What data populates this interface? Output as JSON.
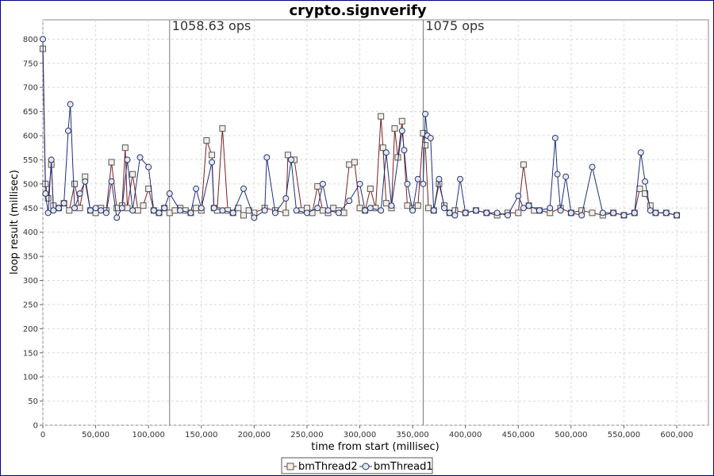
{
  "chart_data": {
    "type": "line",
    "title": "crypto.signverify",
    "xlabel": "time from start (millisec)",
    "ylabel": "loop result (millisec)",
    "xlim": [
      0,
      630000
    ],
    "ylim": [
      0,
      840
    ],
    "xticks": [
      0,
      50000,
      100000,
      150000,
      200000,
      250000,
      300000,
      350000,
      400000,
      450000,
      500000,
      550000,
      600000
    ],
    "xtick_labels": [
      "0",
      "50,000",
      "100,000",
      "150,000",
      "200,000",
      "250,000",
      "300,000",
      "350,000",
      "400,000",
      "450,000",
      "500,000",
      "550,000",
      "600,000"
    ],
    "yticks": [
      0,
      50,
      100,
      150,
      200,
      250,
      300,
      350,
      400,
      450,
      500,
      550,
      600,
      650,
      700,
      750,
      800
    ],
    "grid": true,
    "legend_position": "bottom",
    "markers": [
      {
        "x": 120000,
        "label": "1058.63 ops"
      },
      {
        "x": 360000,
        "label": "1075 ops"
      }
    ],
    "series": [
      {
        "name": "bmThread2",
        "marker": "square",
        "line_color": "#7a1f1f",
        "marker_fill": "#f3eee6",
        "x": [
          0,
          2500,
          5000,
          8000,
          10000,
          15000,
          20000,
          25000,
          30000,
          35000,
          40000,
          45000,
          50000,
          55000,
          60000,
          65000,
          70000,
          75000,
          78000,
          80000,
          85000,
          90000,
          95000,
          100000,
          105000,
          110000,
          115000,
          120000,
          125000,
          130000,
          135000,
          140000,
          145000,
          150000,
          155000,
          160000,
          162000,
          165000,
          170000,
          175000,
          180000,
          185000,
          190000,
          195000,
          200000,
          210000,
          220000,
          230000,
          232000,
          238000,
          245000,
          250000,
          255000,
          260000,
          265000,
          270000,
          275000,
          280000,
          285000,
          290000,
          295000,
          300000,
          305000,
          310000,
          315000,
          320000,
          322000,
          325000,
          330000,
          333000,
          336000,
          340000,
          345000,
          350000,
          355000,
          360000,
          362000,
          365000,
          370000,
          375000,
          380000,
          385000,
          390000,
          400000,
          410000,
          420000,
          430000,
          440000,
          450000,
          455000,
          460000,
          465000,
          470000,
          480000,
          490000,
          500000,
          510000,
          520000,
          530000,
          540000,
          550000,
          560000,
          565000,
          570000,
          575000,
          580000,
          590000,
          600000
        ],
        "y": [
          780,
          500,
          470,
          540,
          455,
          450,
          460,
          445,
          500,
          450,
          515,
          445,
          440,
          450,
          445,
          545,
          450,
          455,
          575,
          450,
          520,
          445,
          455,
          490,
          445,
          440,
          450,
          440,
          445,
          450,
          445,
          440,
          450,
          445,
          590,
          560,
          450,
          445,
          615,
          445,
          440,
          450,
          435,
          445,
          440,
          450,
          445,
          440,
          560,
          550,
          445,
          450,
          440,
          495,
          445,
          440,
          450,
          445,
          440,
          540,
          545,
          450,
          445,
          490,
          450,
          640,
          575,
          460,
          450,
          615,
          555,
          630,
          455,
          450,
          455,
          605,
          580,
          450,
          445,
          500,
          455,
          440,
          445,
          440,
          445,
          440,
          435,
          440,
          440,
          540,
          455,
          445,
          445,
          440,
          450,
          440,
          445,
          440,
          435,
          440,
          435,
          440,
          490,
          480,
          455,
          440,
          440,
          435
        ]
      },
      {
        "name": "bmThread1",
        "marker": "circle",
        "line_color": "#1f2f7a",
        "marker_fill": "#dfeaf6",
        "x": [
          0,
          2500,
          5000,
          8000,
          10000,
          15000,
          20000,
          24000,
          26000,
          30000,
          35000,
          40000,
          45000,
          50000,
          55000,
          60000,
          65000,
          70000,
          75000,
          80000,
          85000,
          92000,
          100000,
          105000,
          110000,
          115000,
          120000,
          130000,
          140000,
          145000,
          150000,
          160000,
          162000,
          170000,
          180000,
          190000,
          200000,
          210000,
          212000,
          220000,
          230000,
          235000,
          240000,
          250000,
          260000,
          265000,
          270000,
          280000,
          290000,
          300000,
          305000,
          310000,
          320000,
          325000,
          330000,
          340000,
          342000,
          345000,
          350000,
          355000,
          360000,
          362000,
          364000,
          367000,
          370000,
          375000,
          380000,
          385000,
          390000,
          395000,
          400000,
          410000,
          420000,
          430000,
          440000,
          450000,
          455000,
          460000,
          470000,
          480000,
          485000,
          487000,
          490000,
          495000,
          500000,
          510000,
          520000,
          530000,
          540000,
          550000,
          560000,
          566000,
          570000,
          575000,
          580000,
          590000,
          600000
        ],
        "y": [
          800,
          480,
          440,
          550,
          445,
          450,
          460,
          610,
          665,
          450,
          480,
          505,
          445,
          450,
          445,
          440,
          505,
          430,
          450,
          550,
          445,
          555,
          535,
          445,
          440,
          450,
          480,
          445,
          440,
          490,
          450,
          545,
          450,
          445,
          440,
          490,
          430,
          445,
          555,
          440,
          470,
          550,
          445,
          440,
          450,
          500,
          445,
          440,
          465,
          500,
          445,
          450,
          445,
          565,
          455,
          610,
          570,
          500,
          445,
          510,
          500,
          645,
          600,
          595,
          445,
          510,
          450,
          440,
          435,
          510,
          440,
          445,
          440,
          440,
          435,
          475,
          450,
          455,
          445,
          450,
          595,
          520,
          445,
          515,
          440,
          435,
          535,
          440,
          440,
          435,
          440,
          565,
          505,
          445,
          440,
          440,
          435
        ]
      }
    ]
  }
}
